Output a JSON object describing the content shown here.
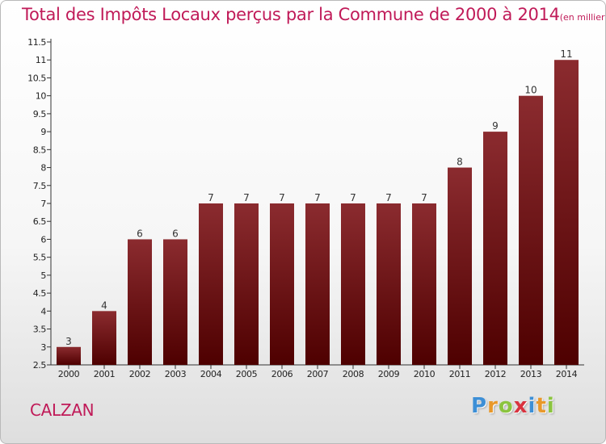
{
  "title": "Total des Impôts Locaux perçus par la Commune de 2000 à 2014",
  "unit_note": "(en milliers d'€)",
  "commune": "CALZAN",
  "logo": {
    "text": "Proxiti",
    "letters": [
      {
        "ch": "P",
        "color": "#3d8fd6"
      },
      {
        "ch": "r",
        "color": "#e8982a"
      },
      {
        "ch": "o",
        "color": "#8bc43f"
      },
      {
        "ch": "x",
        "color": "#d9333f"
      },
      {
        "ch": "i",
        "color": "#3d8fd6"
      },
      {
        "ch": "t",
        "color": "#e8982a"
      },
      {
        "ch": "i",
        "color": "#8bc43f"
      }
    ]
  },
  "colors": {
    "title": "#c01a58",
    "bar_top": "#8b2b2f",
    "bar_bottom": "#4e0000"
  },
  "chart_data": {
    "type": "bar",
    "title": "Total des Impôts Locaux perçus par la Commune de 2000 à 2014",
    "xlabel": "",
    "ylabel": "",
    "categories": [
      "2000",
      "2001",
      "2002",
      "2003",
      "2004",
      "2005",
      "2006",
      "2007",
      "2008",
      "2009",
      "2010",
      "2011",
      "2012",
      "2013",
      "2014"
    ],
    "values": [
      3,
      4,
      6,
      6,
      7,
      7,
      7,
      7,
      7,
      7,
      7,
      8,
      9,
      10,
      11
    ],
    "data_labels": [
      "3",
      "4",
      "6",
      "6",
      "7",
      "7",
      "7",
      "7",
      "7",
      "7",
      "7",
      "8",
      "9",
      "10",
      "11"
    ],
    "ylim": [
      2.5,
      11.5
    ],
    "yticks": [
      "2.5",
      "3",
      "3.5",
      "4",
      "4.5",
      "5",
      "5.5",
      "6",
      "6.5",
      "7",
      "7.5",
      "8",
      "8.5",
      "9",
      "9.5",
      "10",
      "10.5",
      "11",
      "11.5"
    ],
    "grid": false,
    "legend": "none"
  }
}
